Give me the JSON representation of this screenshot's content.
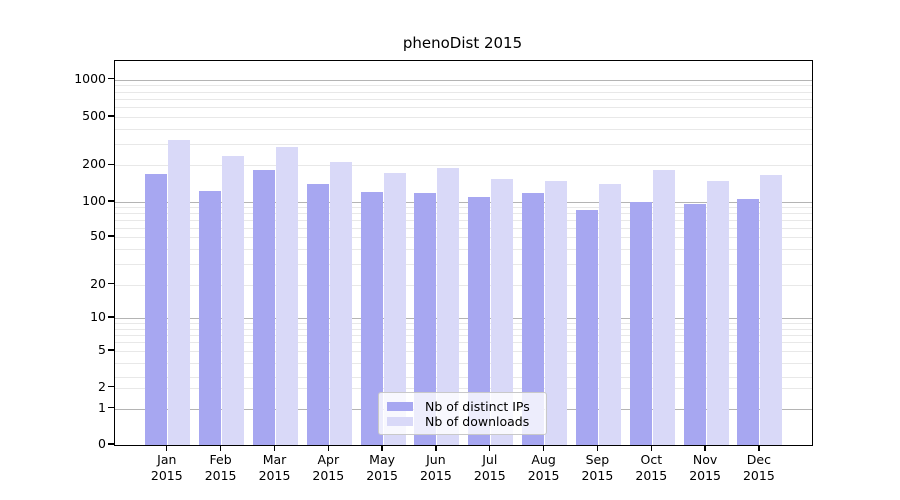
{
  "chart_data": {
    "type": "bar",
    "title": "phenoDist 2015",
    "categories": [
      "Jan",
      "Feb",
      "Mar",
      "Apr",
      "May",
      "Jun",
      "Jul",
      "Aug",
      "Sep",
      "Oct",
      "Nov",
      "Dec"
    ],
    "x_tick_second_line": "2015",
    "series": [
      {
        "name": "Nb of distinct IPs",
        "color": "#a7a7f1",
        "values": [
          170,
          124,
          185,
          140,
          122,
          118,
          109,
          118,
          85,
          101,
          96,
          105
        ]
      },
      {
        "name": "Nb of downloads",
        "color": "#d9d9f8",
        "values": [
          325,
          240,
          285,
          212,
          172,
          192,
          155,
          150,
          140,
          184,
          150,
          167
        ]
      }
    ],
    "yscale": "symlog",
    "yticks": [
      0,
      1,
      2,
      5,
      10,
      20,
      50,
      100,
      200,
      500,
      1000
    ],
    "ylim": [
      0,
      1430
    ],
    "grid": true,
    "legend_position": "lower center (inside plot)",
    "colors": {
      "major_gridline": "#b4b4b4",
      "minor_gridline": "#e8e8e8",
      "axis": "#000000"
    }
  }
}
